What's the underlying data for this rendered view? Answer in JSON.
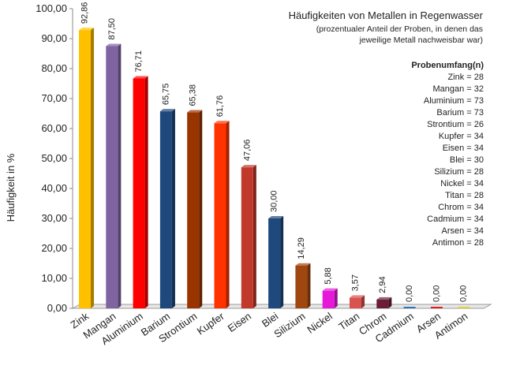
{
  "chart_data": {
    "type": "bar",
    "title": "Häufigkeiten von Metallen in Regenwasser",
    "subtitle": [
      "(prozentualer Anteil der Proben, in denen das",
      "jeweilige Metall nachweisbar war)"
    ],
    "ylabel": "Häufigkeit in %",
    "xlabel": "",
    "ylim": [
      0,
      100
    ],
    "yticks": [
      "0,00",
      "10,00",
      "20,00",
      "30,00",
      "40,00",
      "50,00",
      "60,00",
      "70,00",
      "80,00",
      "90,00",
      "100,00"
    ],
    "categories": [
      "Zink",
      "Mangan",
      "Aluminium",
      "Barium",
      "Strontium",
      "Kupfer",
      "Eisen",
      "Blei",
      "Silizium",
      "Nickel",
      "Titan",
      "Chrom",
      "Cadmium",
      "Arsen",
      "Antimon"
    ],
    "values": [
      92.86,
      87.5,
      76.71,
      65.75,
      65.38,
      61.76,
      47.06,
      30.0,
      14.29,
      5.88,
      3.57,
      2.94,
      0.0,
      0.0,
      0.0
    ],
    "value_labels": [
      "92,86",
      "87,50",
      "76,71",
      "65,75",
      "65,38",
      "61,76",
      "47,06",
      "30,00",
      "14,29",
      "5,88",
      "3,57",
      "2,94",
      "0,00",
      "0,00",
      "0,00"
    ],
    "colors": [
      "#FFC000",
      "#8064A2",
      "#FF0000",
      "#1F497D",
      "#993300",
      "#FF3300",
      "#C0392B",
      "#1F497D",
      "#A0460F",
      "#E619D9",
      "#D9534F",
      "#6A1D35",
      "#2E75B6",
      "#D92020",
      "#E6C84A"
    ],
    "grid": false,
    "legend": {
      "title": "Probenumfang(n)",
      "position": "right",
      "items": [
        "Zink = 28",
        "Mangan = 32",
        "Aluminium = 73",
        "Barium = 73",
        "Strontium = 26",
        "Kupfer = 34",
        "Eisen = 34",
        "Blei = 30",
        "Silizium = 28",
        "Nickel = 34",
        "Titan = 28",
        "Chrom = 34",
        "Cadmium = 34",
        "Arsen = 34",
        "Antimon = 28"
      ]
    }
  }
}
